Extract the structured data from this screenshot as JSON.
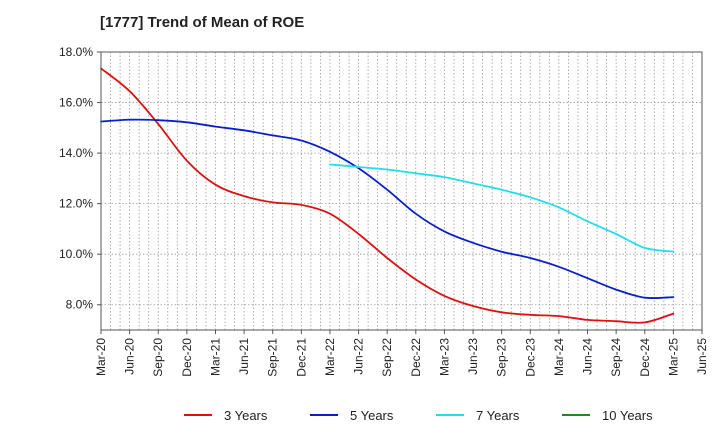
{
  "chart_data": {
    "type": "line",
    "title": "[1777]  Trend of Mean of ROE",
    "xlabel": "",
    "ylabel": "",
    "ylim": [
      7.0,
      18.0
    ],
    "y_ticks": [
      8.0,
      10.0,
      12.0,
      14.0,
      16.0,
      18.0
    ],
    "y_tick_labels": [
      "8.0%",
      "10.0%",
      "12.0%",
      "14.0%",
      "16.0%",
      "18.0%"
    ],
    "x_tick_labels": [
      "Mar-20",
      "Jun-20",
      "Sep-20",
      "Dec-20",
      "Mar-21",
      "Jun-21",
      "Sep-21",
      "Dec-21",
      "Mar-22",
      "Jun-22",
      "Sep-22",
      "Dec-22",
      "Mar-23",
      "Jun-23",
      "Sep-23",
      "Dec-23",
      "Mar-24",
      "Jun-24",
      "Sep-24",
      "Dec-24",
      "Mar-25",
      "Jun-25"
    ],
    "grid": true,
    "legend_position": "bottom",
    "series": [
      {
        "name": "3 Years",
        "color": "#dd1111",
        "x": [
          "Mar-20",
          "Jun-20",
          "Sep-20",
          "Dec-20",
          "Mar-21",
          "Jun-21",
          "Sep-21",
          "Dec-21",
          "Mar-22",
          "Jun-22",
          "Sep-22",
          "Dec-22",
          "Mar-23",
          "Jun-23",
          "Sep-23",
          "Dec-23",
          "Mar-24",
          "Jun-24",
          "Sep-24",
          "Dec-24",
          "Mar-25"
        ],
        "values": [
          17.35,
          16.45,
          15.15,
          13.7,
          12.75,
          12.3,
          12.05,
          11.95,
          11.6,
          10.8,
          9.85,
          9.0,
          8.35,
          7.95,
          7.7,
          7.6,
          7.55,
          7.4,
          7.35,
          7.3,
          7.65
        ]
      },
      {
        "name": "5 Years",
        "color": "#0a1fcc",
        "x": [
          "Mar-20",
          "Jun-20",
          "Sep-20",
          "Dec-20",
          "Mar-21",
          "Jun-21",
          "Sep-21",
          "Dec-21",
          "Mar-22",
          "Jun-22",
          "Sep-22",
          "Dec-22",
          "Mar-23",
          "Jun-23",
          "Sep-23",
          "Dec-23",
          "Mar-24",
          "Jun-24",
          "Sep-24",
          "Dec-24",
          "Mar-25"
        ],
        "values": [
          15.25,
          15.32,
          15.3,
          15.22,
          15.05,
          14.9,
          14.7,
          14.5,
          14.05,
          13.4,
          12.55,
          11.6,
          10.9,
          10.45,
          10.1,
          9.85,
          9.5,
          9.05,
          8.6,
          8.28,
          8.3
        ]
      },
      {
        "name": "7 Years",
        "color": "#22ddee",
        "x": [
          "Mar-22",
          "Jun-22",
          "Sep-22",
          "Dec-22",
          "Mar-23",
          "Jun-23",
          "Sep-23",
          "Dec-23",
          "Mar-24",
          "Jun-24",
          "Sep-24",
          "Dec-24",
          "Mar-25"
        ],
        "values": [
          13.55,
          13.45,
          13.35,
          13.2,
          13.05,
          12.8,
          12.55,
          12.25,
          11.85,
          11.3,
          10.8,
          10.25,
          10.1
        ]
      },
      {
        "name": "10 Years",
        "color": "#228822",
        "x": [],
        "values": []
      }
    ]
  }
}
